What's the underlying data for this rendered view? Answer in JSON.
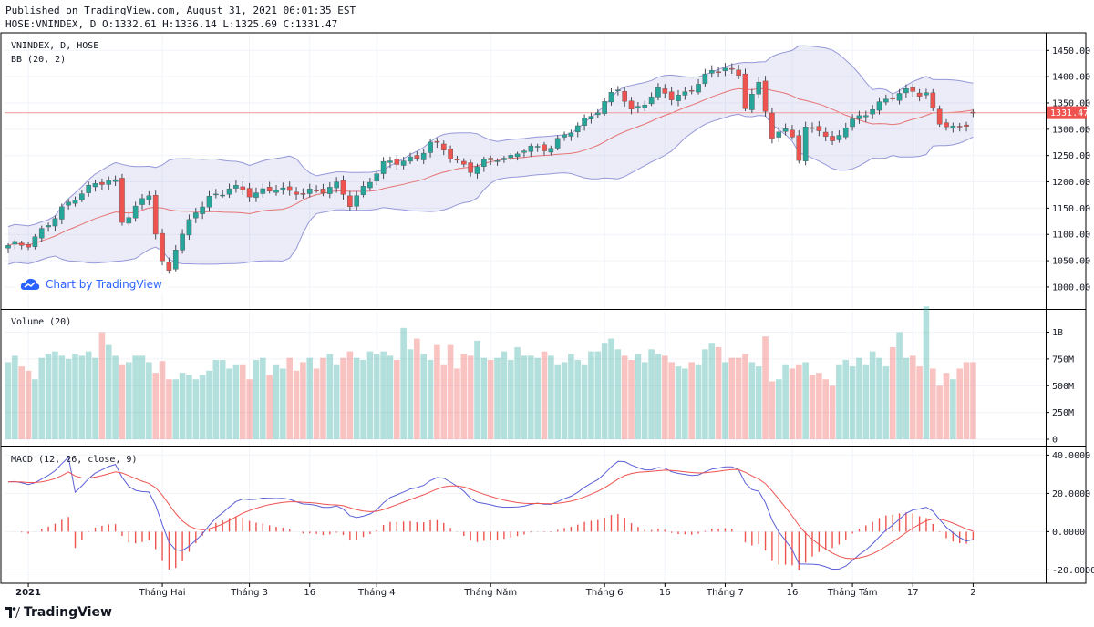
{
  "header": {
    "published": "Published on TradingView.com, August 31, 2021 06:01:35 EST",
    "ohlc": "HOSE:VNINDEX, D O:1332.61 H:1336.14 L:1325.69 C:1331.47"
  },
  "legend": {
    "symbol": "VNINDEX, D, HOSE",
    "bb": "BB (20, 2)",
    "volume": "Volume (20)",
    "macd": "MACD (12, 26, close, 9)"
  },
  "watermark": "Chart by TradingView",
  "brand": "TradingView",
  "colors": {
    "up": "#26a69a",
    "down": "#ef5350",
    "band": "#9598d8",
    "basis": "#e57373",
    "macd": "#5b5fd6",
    "signal": "#ef5350"
  },
  "chart_data": {
    "type": "candlestick",
    "title": "HOSE:VNINDEX, D",
    "last_price": 1331.47,
    "last_price_label": "1331.47",
    "price_axis": {
      "ticks": [
        1000,
        1050,
        1100,
        1150,
        1200,
        1250,
        1300,
        1350,
        1400,
        1450
      ],
      "tick_labels": [
        "1000.00",
        "1050.00",
        "1100.00",
        "1150.00",
        "1200.00",
        "1250.00",
        "1300.00",
        "1350.00",
        "1400.00",
        "1450.00"
      ],
      "range": [
        960,
        1480
      ]
    },
    "volume_axis": {
      "ticks": [
        0,
        250,
        500,
        750,
        1000
      ],
      "tick_labels": [
        "0",
        "250M",
        "500M",
        "750M",
        "1B"
      ],
      "range": [
        0,
        1200
      ]
    },
    "macd_axis": {
      "ticks": [
        40,
        20,
        0,
        -20
      ],
      "tick_labels": [
        "40.0000",
        "20.0000",
        "0.0000",
        "-20.0000"
      ],
      "range": [
        -26,
        44
      ]
    },
    "time_labels": [
      {
        "idx": 3,
        "label": "2021",
        "bold": true
      },
      {
        "idx": 23,
        "label": "Tháng Hai"
      },
      {
        "idx": 36,
        "label": "Tháng 3"
      },
      {
        "idx": 45,
        "label": "16"
      },
      {
        "idx": 55,
        "label": "Tháng 4"
      },
      {
        "idx": 72,
        "label": "Tháng Năm"
      },
      {
        "idx": 89,
        "label": "Tháng 6"
      },
      {
        "idx": 98,
        "label": "16"
      },
      {
        "idx": 107,
        "label": "Tháng 7"
      },
      {
        "idx": 117,
        "label": "16"
      },
      {
        "idx": 126,
        "label": "Tháng Tám"
      },
      {
        "idx": 135,
        "label": "17"
      },
      {
        "idx": 144,
        "label": "2"
      }
    ],
    "close_anchors": [
      [
        0,
        1075
      ],
      [
        3,
        1085
      ],
      [
        7,
        1130
      ],
      [
        10,
        1175
      ],
      [
        13,
        1195
      ],
      [
        16,
        1200
      ],
      [
        17,
        1130
      ],
      [
        19,
        1150
      ],
      [
        21,
        1175
      ],
      [
        22,
        1100
      ],
      [
        23,
        1045
      ],
      [
        24,
        1035
      ],
      [
        25,
        1080
      ],
      [
        28,
        1140
      ],
      [
        30,
        1170
      ],
      [
        33,
        1190
      ],
      [
        36,
        1175
      ],
      [
        38,
        1185
      ],
      [
        40,
        1190
      ],
      [
        42,
        1175
      ],
      [
        45,
        1185
      ],
      [
        47,
        1185
      ],
      [
        49,
        1190
      ],
      [
        51,
        1160
      ],
      [
        53,
        1190
      ],
      [
        56,
        1230
      ],
      [
        59,
        1245
      ],
      [
        61,
        1245
      ],
      [
        63,
        1270
      ],
      [
        65,
        1265
      ],
      [
        67,
        1240
      ],
      [
        69,
        1220
      ],
      [
        71,
        1235
      ],
      [
        73,
        1250
      ],
      [
        75,
        1245
      ],
      [
        77,
        1260
      ],
      [
        79,
        1265
      ],
      [
        81,
        1270
      ],
      [
        83,
        1285
      ],
      [
        85,
        1305
      ],
      [
        87,
        1330
      ],
      [
        89,
        1350
      ],
      [
        91,
        1375
      ],
      [
        93,
        1335
      ],
      [
        95,
        1355
      ],
      [
        97,
        1370
      ],
      [
        99,
        1360
      ],
      [
        101,
        1370
      ],
      [
        103,
        1390
      ],
      [
        105,
        1405
      ],
      [
        107,
        1420
      ],
      [
        109,
        1405
      ],
      [
        110,
        1345
      ],
      [
        112,
        1380
      ],
      [
        113,
        1335
      ],
      [
        114,
        1290
      ],
      [
        116,
        1300
      ],
      [
        117,
        1290
      ],
      [
        118,
        1240
      ],
      [
        119,
        1295
      ],
      [
        121,
        1305
      ],
      [
        123,
        1275
      ],
      [
        125,
        1305
      ],
      [
        127,
        1320
      ],
      [
        129,
        1345
      ],
      [
        131,
        1355
      ],
      [
        133,
        1365
      ],
      [
        135,
        1375
      ],
      [
        137,
        1370
      ],
      [
        138,
        1335
      ],
      [
        139,
        1310
      ],
      [
        141,
        1300
      ],
      [
        142,
        1305
      ],
      [
        143,
        1315
      ],
      [
        144,
        1331.47
      ]
    ],
    "volume_pattern_M": [
      720,
      780,
      680,
      640,
      560,
      760,
      800,
      820,
      780,
      750,
      800,
      780,
      820,
      760,
      1000,
      880,
      780,
      700,
      720,
      780,
      780,
      720,
      620,
      730,
      560,
      560,
      620,
      600,
      560,
      600,
      640,
      740,
      740,
      660,
      700,
      700,
      560,
      740,
      760,
      600,
      700,
      660,
      760,
      640,
      720,
      760,
      660,
      760,
      800,
      700,
      760,
      820,
      760,
      740,
      820,
      800,
      820,
      780,
      740,
      1040,
      840,
      940,
      800,
      740,
      880,
      700,
      880,
      660,
      800,
      780,
      920,
      760,
      740,
      760,
      820,
      740,
      860,
      780,
      780,
      760,
      820,
      780,
      700,
      720,
      800,
      740,
      700,
      820,
      820,
      900,
      940,
      840,
      780,
      740,
      800,
      720,
      840,
      800,
      780,
      720,
      680,
      660,
      720,
      700,
      840,
      900,
      860,
      720,
      760,
      760,
      800,
      720,
      680,
      960,
      540,
      560,
      700,
      660,
      700,
      720,
      600,
      620,
      560,
      500,
      700,
      740,
      680,
      760,
      700,
      820,
      760,
      680,
      860,
      1000,
      760,
      780,
      680,
      1240,
      660,
      500,
      620,
      560,
      660,
      720
    ]
  }
}
